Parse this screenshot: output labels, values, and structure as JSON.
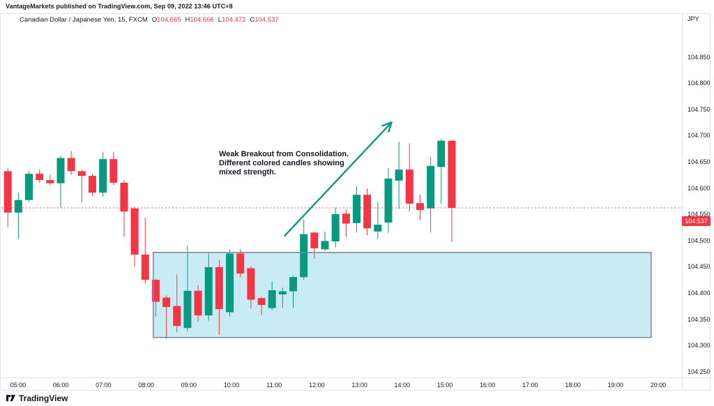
{
  "header": {
    "watermark": "VantageMarkets published on TradingView.com, Sep 09, 2022 13:46 UTC+8"
  },
  "legend": {
    "symbol": "Canadian Dollar / Japanese Yen, 15, FXCM",
    "ohlc": [
      {
        "label": "O",
        "value": "104.665"
      },
      {
        "label": "H",
        "value": "104.666"
      },
      {
        "label": "L",
        "value": "104.472"
      },
      {
        "label": "C",
        "value": "104.537"
      }
    ]
  },
  "annotation": {
    "lines": [
      "Weak Breakout from Consolidation.",
      "Different colored candles showing",
      "mixed strength."
    ]
  },
  "price_scale": {
    "currency": "JPY",
    "ticks": [
      "104.850",
      "104.800",
      "104.750",
      "104.700",
      "104.650",
      "104.600",
      "104.550",
      "104.500",
      "104.450",
      "104.400",
      "104.350",
      "104.300",
      "104.250"
    ],
    "last_price": "104.537"
  },
  "time_scale": {
    "labels": [
      "05:00",
      "06:00",
      "07:00",
      "08:00",
      "09:00",
      "10:00",
      "11:00",
      "12:00",
      "13:00",
      "14:00",
      "15:00",
      "16:00",
      "17:00",
      "18:00",
      "19:00",
      "20:00"
    ]
  },
  "footer": {
    "brand": "TradingView"
  },
  "colors": {
    "up": "#089981",
    "down": "#F23645",
    "box_fill": "#C9EBF3",
    "box_border": "#7E8B99",
    "arrow": "#089981",
    "price_line": "#F23645",
    "axis_text": "#131722",
    "border": "#E0E3EB"
  },
  "chart_data": {
    "type": "candlestick",
    "symbol": "Canadian Dollar / Japanese Yen",
    "interval": "15",
    "exchange": "FXCM",
    "ohlc_current": {
      "o": 104.665,
      "h": 104.666,
      "l": 104.472,
      "c": 104.537
    },
    "last_price": 104.537,
    "ylim": [
      104.225,
      104.885
    ],
    "legend_position": "top-left",
    "grid": false,
    "candles": [
      {
        "t": "04:45",
        "o": 104.607,
        "h": 104.613,
        "l": 104.5,
        "c": 104.528
      },
      {
        "t": "05:00",
        "o": 104.528,
        "h": 104.566,
        "l": 104.478,
        "c": 104.552
      },
      {
        "t": "05:15",
        "o": 104.552,
        "h": 104.608,
        "l": 104.548,
        "c": 104.602
      },
      {
        "t": "05:30",
        "o": 104.602,
        "h": 104.61,
        "l": 104.585,
        "c": 104.59
      },
      {
        "t": "05:45",
        "o": 104.59,
        "h": 104.6,
        "l": 104.58,
        "c": 104.584
      },
      {
        "t": "06:00",
        "o": 104.584,
        "h": 104.636,
        "l": 104.538,
        "c": 104.632
      },
      {
        "t": "06:15",
        "o": 104.632,
        "h": 104.645,
        "l": 104.6,
        "c": 104.607
      },
      {
        "t": "06:30",
        "o": 104.607,
        "h": 104.61,
        "l": 104.548,
        "c": 104.598
      },
      {
        "t": "06:45",
        "o": 104.598,
        "h": 104.602,
        "l": 104.56,
        "c": 104.566
      },
      {
        "t": "07:00",
        "o": 104.566,
        "h": 104.643,
        "l": 104.558,
        "c": 104.63
      },
      {
        "t": "07:15",
        "o": 104.63,
        "h": 104.644,
        "l": 104.58,
        "c": 104.585
      },
      {
        "t": "07:30",
        "o": 104.585,
        "h": 104.59,
        "l": 104.482,
        "c": 104.53
      },
      {
        "t": "07:45",
        "o": 104.536,
        "h": 104.54,
        "l": 104.425,
        "c": 104.448
      },
      {
        "t": "08:00",
        "o": 104.448,
        "h": 104.518,
        "l": 104.393,
        "c": 104.4
      },
      {
        "t": "08:15",
        "o": 104.4,
        "h": 104.402,
        "l": 104.33,
        "c": 104.358
      },
      {
        "t": "08:30",
        "o": 104.366,
        "h": 104.37,
        "l": 104.288,
        "c": 104.348
      },
      {
        "t": "08:45",
        "o": 104.35,
        "h": 104.41,
        "l": 104.3,
        "c": 104.312
      },
      {
        "t": "09:00",
        "o": 104.308,
        "h": 104.465,
        "l": 104.302,
        "c": 104.379
      },
      {
        "t": "09:15",
        "o": 104.379,
        "h": 104.39,
        "l": 104.32,
        "c": 104.332
      },
      {
        "t": "09:30",
        "o": 104.332,
        "h": 104.45,
        "l": 104.322,
        "c": 104.424
      },
      {
        "t": "09:45",
        "o": 104.424,
        "h": 104.438,
        "l": 104.295,
        "c": 104.344
      },
      {
        "t": "10:00",
        "o": 104.338,
        "h": 104.458,
        "l": 104.33,
        "c": 104.45
      },
      {
        "t": "10:15",
        "o": 104.45,
        "h": 104.458,
        "l": 104.405,
        "c": 104.412
      },
      {
        "t": "10:30",
        "o": 104.422,
        "h": 104.426,
        "l": 104.345,
        "c": 104.362
      },
      {
        "t": "10:45",
        "o": 104.365,
        "h": 104.368,
        "l": 104.332,
        "c": 104.352
      },
      {
        "t": "11:00",
        "o": 104.346,
        "h": 104.397,
        "l": 104.342,
        "c": 104.38
      },
      {
        "t": "11:15",
        "o": 104.372,
        "h": 104.385,
        "l": 104.346,
        "c": 104.378
      },
      {
        "t": "11:30",
        "o": 104.378,
        "h": 104.408,
        "l": 104.346,
        "c": 104.405
      },
      {
        "t": "11:45",
        "o": 104.405,
        "h": 104.515,
        "l": 104.4,
        "c": 104.487
      },
      {
        "t": "12:00",
        "o": 104.49,
        "h": 104.492,
        "l": 104.44,
        "c": 104.46
      },
      {
        "t": "12:15",
        "o": 104.458,
        "h": 104.492,
        "l": 104.455,
        "c": 104.474
      },
      {
        "t": "12:30",
        "o": 104.473,
        "h": 104.538,
        "l": 104.462,
        "c": 104.525
      },
      {
        "t": "12:45",
        "o": 104.526,
        "h": 104.534,
        "l": 104.482,
        "c": 104.507
      },
      {
        "t": "13:00",
        "o": 104.508,
        "h": 104.578,
        "l": 104.49,
        "c": 104.562
      },
      {
        "t": "13:15",
        "o": 104.562,
        "h": 104.574,
        "l": 104.485,
        "c": 104.498
      },
      {
        "t": "13:30",
        "o": 104.492,
        "h": 104.548,
        "l": 104.478,
        "c": 104.505
      },
      {
        "t": "13:45",
        "o": 104.509,
        "h": 104.613,
        "l": 104.489,
        "c": 104.593
      },
      {
        "t": "14:00",
        "o": 104.589,
        "h": 104.663,
        "l": 104.535,
        "c": 104.61
      },
      {
        "t": "14:15",
        "o": 104.61,
        "h": 104.66,
        "l": 104.53,
        "c": 104.545
      },
      {
        "t": "14:30",
        "o": 104.546,
        "h": 104.562,
        "l": 104.514,
        "c": 104.533
      },
      {
        "t": "14:45",
        "o": 104.536,
        "h": 104.634,
        "l": 104.49,
        "c": 104.617
      },
      {
        "t": "15:00",
        "o": 104.615,
        "h": 104.668,
        "l": 104.545,
        "c": 104.665
      },
      {
        "t": "15:15",
        "o": 104.665,
        "h": 104.666,
        "l": 104.472,
        "c": 104.537
      }
    ],
    "drawings": {
      "box": {
        "time_start": "08:10",
        "time_end": "19:50",
        "price_top": 104.452,
        "price_bottom": 104.29
      },
      "arrow": {
        "from": {
          "time": "11:15",
          "price": 104.484
        },
        "to": {
          "time": "13:45",
          "price": 104.7
        }
      }
    }
  }
}
